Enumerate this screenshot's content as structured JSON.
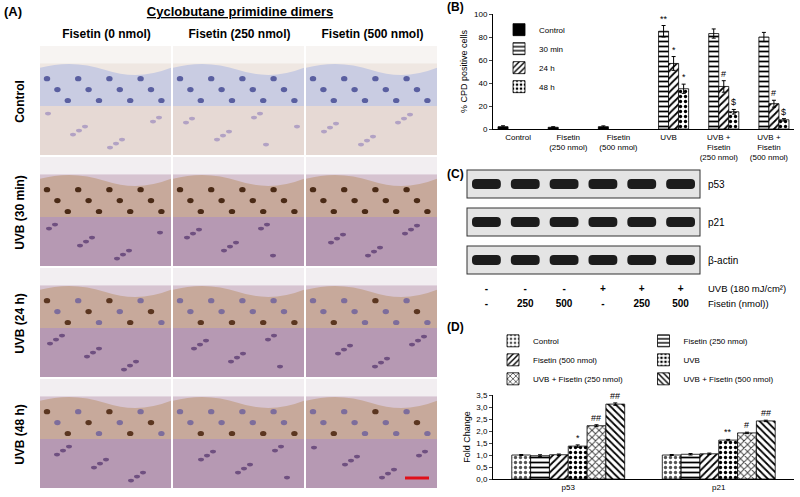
{
  "panel_a": {
    "label": "(A)",
    "title": "Cyclobutane primidine dimers",
    "columns": [
      "Fisetin (0 nmol)",
      "Fisetin (250 nmol)",
      "Fisetin (500 nmol)"
    ],
    "rows": [
      "Control",
      "UVB (30 min)",
      "UVB (24 h)",
      "UVB (48 h)"
    ]
  },
  "panel_c": {
    "label": "(C)",
    "bands": [
      "p53",
      "p21",
      "β-actin"
    ],
    "conditions": [
      {
        "label": "UVB (180 mJ/cm²)",
        "values": [
          "-",
          "-",
          "-",
          "+",
          "+",
          "+"
        ]
      },
      {
        "label": "Fisetin (nmol))",
        "values": [
          "-",
          "250",
          "500",
          "-",
          "250",
          "500"
        ]
      }
    ]
  },
  "chart_data": [
    {
      "panel": "(B)",
      "type": "bar",
      "categories": [
        "Control",
        "Fisetin (250 nmol)",
        "Fisetin (500 nmol)",
        "UVB",
        "UVB + Fisetin (250 nmol)",
        "UVB + Fisetin (500 nmol)"
      ],
      "ylabel": "% CPD positive cells",
      "ylim": [
        0,
        100
      ],
      "yticks": [
        0,
        20,
        40,
        60,
        80,
        100
      ],
      "legend": "upper left",
      "series": [
        {
          "name": "Control",
          "color": "#000000",
          "marker": "solid",
          "values": [
            2,
            1.5,
            2,
            null,
            null,
            null
          ],
          "errors": [
            0.8,
            0.5,
            0.7,
            null,
            null,
            null
          ],
          "annotations": [
            null,
            null,
            null,
            null,
            null,
            null
          ]
        },
        {
          "name": "30 min",
          "color": "#000000",
          "marker": "horizontal",
          "values": [
            null,
            null,
            null,
            85,
            83,
            80
          ],
          "errors": [
            null,
            null,
            null,
            5,
            4,
            4
          ],
          "annotations": [
            null,
            null,
            null,
            "**",
            null,
            null
          ]
        },
        {
          "name": "24 h",
          "color": "#000000",
          "marker": "diagonal",
          "values": [
            null,
            null,
            null,
            57,
            37,
            22
          ],
          "errors": [
            null,
            null,
            null,
            6,
            5,
            3
          ],
          "annotations": [
            null,
            null,
            null,
            "*",
            "#",
            "#"
          ]
        },
        {
          "name": "48 h",
          "color": "#000000",
          "marker": "dots",
          "values": [
            null,
            null,
            null,
            35,
            15,
            8
          ],
          "errors": [
            null,
            null,
            null,
            4,
            2,
            1
          ],
          "annotations": [
            null,
            null,
            null,
            "*",
            "$",
            "$"
          ]
        }
      ]
    },
    {
      "panel": "(D)",
      "type": "bar",
      "categories": [
        "p53",
        "p21"
      ],
      "ylabel": "Fold Change",
      "ylim": [
        0,
        3.5
      ],
      "yticks": [
        {
          "value": 0,
          "label": "0,0"
        },
        {
          "value": 0.5,
          "label": "0,5"
        },
        {
          "value": 1,
          "label": "1,0"
        },
        {
          "value": 1.5,
          "label": "1,5"
        },
        {
          "value": 2,
          "label": "2,0"
        },
        {
          "value": 2.5,
          "label": "2,5"
        },
        {
          "value": 3,
          "label": "3,0"
        },
        {
          "value": 3.5,
          "label": "3,5"
        }
      ],
      "legend": "top",
      "series": [
        {
          "name": "Control",
          "color": "#555555",
          "marker": "dots",
          "values": [
            1.0,
            1.0
          ],
          "errors": [
            0.02,
            0.02
          ],
          "annotations": [
            null,
            null
          ]
        },
        {
          "name": "Fisetin (250 nmol)",
          "color": "#000000",
          "marker": "horizontal",
          "values": [
            0.97,
            1.03
          ],
          "errors": [
            0.04,
            0.03
          ],
          "annotations": [
            null,
            null
          ]
        },
        {
          "name": "Fisetin (500 nmol)",
          "color": "#000000",
          "marker": "diagonal",
          "values": [
            1.01,
            1.05
          ],
          "errors": [
            0.03,
            0.03
          ],
          "annotations": [
            null,
            null
          ]
        },
        {
          "name": "UVB",
          "color": "#000000",
          "marker": "dots",
          "values": [
            1.37,
            1.62
          ],
          "errors": [
            0.05,
            0.03
          ],
          "annotations": [
            "*",
            "**"
          ]
        },
        {
          "name": "UVB + Fisetin (250 nmol)",
          "color": "#404040",
          "marker": "cross",
          "values": [
            2.22,
            1.92
          ],
          "errors": [
            0.04,
            0.03
          ],
          "annotations": [
            "##",
            "#"
          ]
        },
        {
          "name": "UVB + Fisetin (500 nmol)",
          "color": "#000000",
          "marker": "backdiagonal",
          "values": [
            3.12,
            2.42
          ],
          "errors": [
            0.05,
            0.03
          ],
          "annotations": [
            "##",
            "##"
          ]
        }
      ]
    }
  ]
}
